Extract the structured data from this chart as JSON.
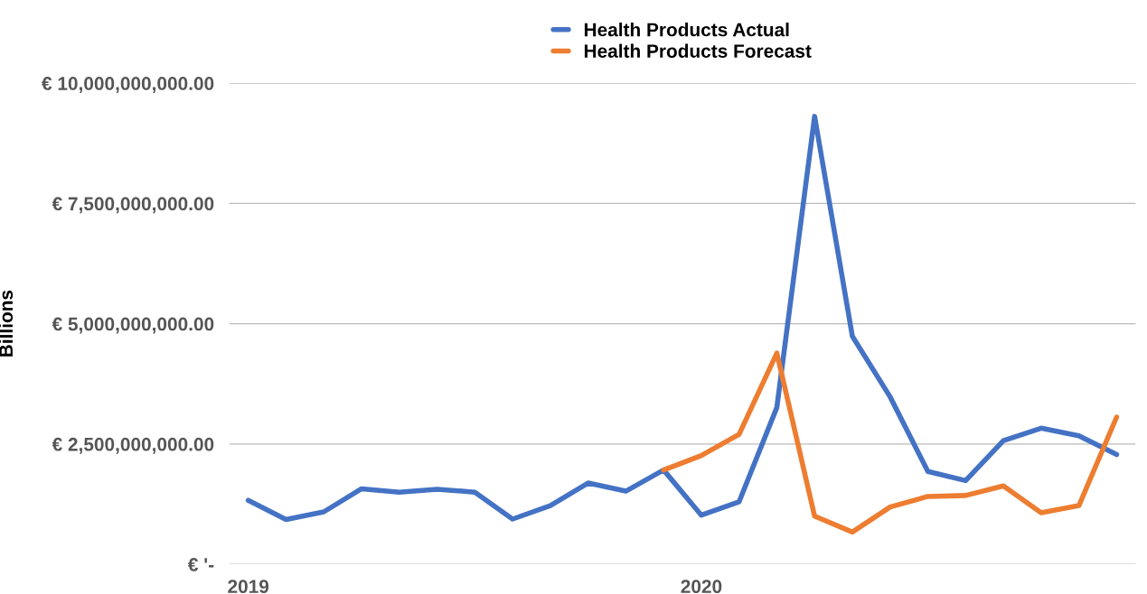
{
  "chart_data": {
    "type": "line",
    "ylabel": "Billions",
    "categories": [
      "2019",
      null,
      null,
      null,
      null,
      null,
      null,
      null,
      null,
      null,
      null,
      null,
      "2020",
      null,
      null,
      null,
      null,
      null,
      null,
      null,
      null,
      null,
      null,
      null
    ],
    "series": [
      {
        "name": "Health Products Actual",
        "color": "#4472c4",
        "values": [
          1330000000,
          930000000,
          1090000000,
          1570000000,
          1500000000,
          1560000000,
          1500000000,
          940000000,
          1220000000,
          1690000000,
          1520000000,
          1960000000,
          1020000000,
          1300000000,
          3260000000,
          9310000000,
          4740000000,
          3480000000,
          1930000000,
          1740000000,
          2570000000,
          2830000000,
          2670000000,
          2280000000
        ]
      },
      {
        "name": "Health Products Forecast",
        "color": "#ed7d31",
        "values": [
          null,
          null,
          null,
          null,
          null,
          null,
          null,
          null,
          null,
          null,
          null,
          1960000000,
          2260000000,
          2700000000,
          4390000000,
          1000000000,
          670000000,
          1190000000,
          1410000000,
          1430000000,
          1630000000,
          1070000000,
          1220000000,
          3060000000
        ]
      }
    ],
    "ylim": [
      0,
      10000000000
    ],
    "yticks": [
      {
        "value": 0,
        "label": "€ '-"
      },
      {
        "value": 2500000000,
        "label": "€ 2,500,000,000.00"
      },
      {
        "value": 5000000000,
        "label": "€ 5,000,000,000.00"
      },
      {
        "value": 7500000000,
        "label": "€ 7,500,000,000.00"
      },
      {
        "value": 10000000000,
        "label": "€ 10,000,000,000.00"
      }
    ],
    "grid": "y",
    "legend": "top",
    "marker": "none",
    "line_style": "solid"
  }
}
